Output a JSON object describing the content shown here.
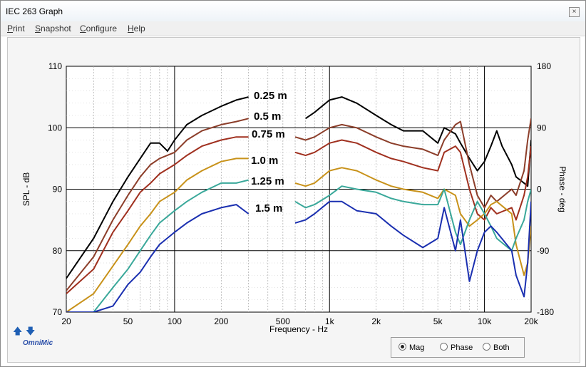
{
  "window": {
    "title": "IEC 263 Graph",
    "close_symbol": "×"
  },
  "menu": [
    "Print",
    "Snapshot",
    "Configure",
    "Help"
  ],
  "branding": {
    "logo_text": "OmniMic",
    "up_arrow": "🡅",
    "down_arrow": "🡇"
  },
  "view_options": {
    "options": [
      "Mag",
      "Phase",
      "Both"
    ],
    "selected": "Mag"
  },
  "chart_data": {
    "type": "line",
    "xlabel": "Frequency - Hz",
    "ylabel": "SPL - dB",
    "y2label": "Phase - deg",
    "x_scale": "log",
    "xlim": [
      20,
      20000
    ],
    "ylim": [
      70,
      110
    ],
    "y2lim": [
      -180,
      180
    ],
    "x_ticks": [
      20,
      50,
      100,
      200,
      500,
      1000,
      2000,
      5000,
      10000,
      20000
    ],
    "x_tick_labels": [
      "20",
      "50",
      "100",
      "200",
      "500",
      "1k",
      "2k",
      "5k",
      "10k",
      "20k"
    ],
    "y_ticks": [
      70,
      80,
      90,
      100,
      110
    ],
    "y2_ticks": [
      -180,
      -90,
      0,
      90,
      180
    ],
    "grid": true,
    "series": [
      {
        "name": "0.25 m",
        "color": "#000000",
        "points": [
          [
            20,
            75.5
          ],
          [
            30,
            82
          ],
          [
            40,
            88
          ],
          [
            50,
            92
          ],
          [
            60,
            95
          ],
          [
            70,
            97.5
          ],
          [
            80,
            97.5
          ],
          [
            90,
            96.2
          ],
          [
            100,
            98
          ],
          [
            120,
            100.5
          ],
          [
            150,
            102
          ],
          [
            200,
            103.5
          ],
          [
            250,
            104.5
          ],
          [
            300,
            105
          ],
          [
            400,
            104
          ],
          [
            500,
            103
          ],
          [
            600,
            102
          ],
          [
            700,
            101.5
          ],
          [
            800,
            102.5
          ],
          [
            1000,
            104.5
          ],
          [
            1200,
            105
          ],
          [
            1500,
            104
          ],
          [
            2000,
            102
          ],
          [
            2500,
            100.5
          ],
          [
            3000,
            99.5
          ],
          [
            4000,
            99.5
          ],
          [
            5000,
            97.5
          ],
          [
            5500,
            100
          ],
          [
            6500,
            99
          ],
          [
            7000,
            97.5
          ],
          [
            8000,
            95
          ],
          [
            9000,
            93
          ],
          [
            10000,
            94.5
          ],
          [
            11000,
            97
          ],
          [
            12000,
            99.5
          ],
          [
            13000,
            97
          ],
          [
            15000,
            94
          ],
          [
            16000,
            92
          ],
          [
            18000,
            91
          ],
          [
            19000,
            90.5
          ],
          [
            20000,
            98
          ]
        ]
      },
      {
        "name": "0.5 m",
        "color": "#8c3e2a",
        "points": [
          [
            20,
            73.5
          ],
          [
            30,
            79
          ],
          [
            40,
            85
          ],
          [
            50,
            89
          ],
          [
            60,
            92
          ],
          [
            70,
            94
          ],
          [
            80,
            95
          ],
          [
            100,
            96
          ],
          [
            120,
            98
          ],
          [
            150,
            99.5
          ],
          [
            200,
            100.5
          ],
          [
            250,
            101
          ],
          [
            300,
            101.5
          ],
          [
            400,
            100.5
          ],
          [
            500,
            99.5
          ],
          [
            600,
            98.5
          ],
          [
            700,
            98
          ],
          [
            800,
            98.5
          ],
          [
            1000,
            100
          ],
          [
            1200,
            100.5
          ],
          [
            1500,
            100
          ],
          [
            2000,
            98.5
          ],
          [
            2500,
            97.5
          ],
          [
            3000,
            97
          ],
          [
            4000,
            96.5
          ],
          [
            5000,
            95.5
          ],
          [
            5500,
            98
          ],
          [
            6500,
            100.5
          ],
          [
            7000,
            101
          ],
          [
            8000,
            94
          ],
          [
            9000,
            89
          ],
          [
            10000,
            87
          ],
          [
            11000,
            89
          ],
          [
            12000,
            88
          ],
          [
            15000,
            90
          ],
          [
            16000,
            89
          ],
          [
            18000,
            93
          ],
          [
            19000,
            98
          ],
          [
            20000,
            101.5
          ]
        ]
      },
      {
        "name": "0.75 m",
        "color": "#a0301f",
        "points": [
          [
            20,
            73
          ],
          [
            30,
            77
          ],
          [
            40,
            83
          ],
          [
            50,
            86.5
          ],
          [
            60,
            89.5
          ],
          [
            70,
            91
          ],
          [
            80,
            92.5
          ],
          [
            100,
            94
          ],
          [
            120,
            95.5
          ],
          [
            150,
            97
          ],
          [
            200,
            98
          ],
          [
            250,
            98.5
          ],
          [
            300,
            98.5
          ],
          [
            400,
            98
          ],
          [
            500,
            97
          ],
          [
            600,
            96
          ],
          [
            700,
            95.5
          ],
          [
            800,
            96
          ],
          [
            1000,
            97.5
          ],
          [
            1200,
            98
          ],
          [
            1500,
            97.5
          ],
          [
            2000,
            96
          ],
          [
            2500,
            95
          ],
          [
            3000,
            94.5
          ],
          [
            4000,
            93.5
          ],
          [
            5000,
            93
          ],
          [
            5500,
            96
          ],
          [
            6500,
            97
          ],
          [
            7000,
            96
          ],
          [
            8000,
            90
          ],
          [
            9000,
            86
          ],
          [
            10000,
            85
          ],
          [
            11000,
            87
          ],
          [
            12000,
            86
          ],
          [
            15000,
            87
          ],
          [
            16000,
            85
          ],
          [
            18000,
            89
          ],
          [
            19000,
            92
          ],
          [
            20000,
            97
          ]
        ]
      },
      {
        "name": "1.0 m",
        "color": "#c8921a",
        "points": [
          [
            20,
            70
          ],
          [
            30,
            73
          ],
          [
            40,
            77.5
          ],
          [
            50,
            81
          ],
          [
            60,
            84
          ],
          [
            70,
            86
          ],
          [
            80,
            88
          ],
          [
            100,
            89.5
          ],
          [
            120,
            91.5
          ],
          [
            150,
            93
          ],
          [
            200,
            94.5
          ],
          [
            250,
            95
          ],
          [
            300,
            95
          ],
          [
            400,
            94
          ],
          [
            500,
            92.5
          ],
          [
            600,
            91
          ],
          [
            700,
            90.5
          ],
          [
            800,
            91
          ],
          [
            1000,
            93
          ],
          [
            1200,
            93.5
          ],
          [
            1500,
            93
          ],
          [
            2000,
            91.5
          ],
          [
            2500,
            90.5
          ],
          [
            3000,
            90
          ],
          [
            4000,
            89.5
          ],
          [
            5000,
            88.5
          ],
          [
            5500,
            90
          ],
          [
            6500,
            89
          ],
          [
            7000,
            86
          ],
          [
            8000,
            84
          ],
          [
            9000,
            85
          ],
          [
            10000,
            86
          ],
          [
            11000,
            87.5
          ],
          [
            12000,
            88
          ],
          [
            15000,
            86
          ],
          [
            16000,
            81
          ],
          [
            18000,
            76
          ],
          [
            19000,
            78
          ],
          [
            20000,
            84
          ]
        ]
      },
      {
        "name": "1.25 m",
        "color": "#3aa89a",
        "points": [
          [
            20,
            70
          ],
          [
            30,
            70
          ],
          [
            40,
            74
          ],
          [
            50,
            77
          ],
          [
            60,
            80
          ],
          [
            70,
            82.5
          ],
          [
            80,
            84.5
          ],
          [
            100,
            86.5
          ],
          [
            120,
            88
          ],
          [
            150,
            89.5
          ],
          [
            200,
            91
          ],
          [
            250,
            91
          ],
          [
            300,
            91.5
          ],
          [
            400,
            90
          ],
          [
            500,
            89
          ],
          [
            600,
            88
          ],
          [
            700,
            87
          ],
          [
            800,
            87.5
          ],
          [
            1000,
            89
          ],
          [
            1200,
            90.5
          ],
          [
            1500,
            90
          ],
          [
            2000,
            89.5
          ],
          [
            2500,
            88.5
          ],
          [
            3000,
            88
          ],
          [
            4000,
            87.5
          ],
          [
            5000,
            87.5
          ],
          [
            5500,
            90
          ],
          [
            6500,
            83
          ],
          [
            7000,
            81
          ],
          [
            8000,
            85
          ],
          [
            9000,
            88
          ],
          [
            10000,
            86
          ],
          [
            11000,
            84
          ],
          [
            12000,
            82
          ],
          [
            15000,
            80
          ],
          [
            16000,
            82
          ],
          [
            18000,
            85
          ],
          [
            19000,
            88
          ],
          [
            20000,
            90
          ]
        ]
      },
      {
        "name": "1.5 m",
        "color": "#1a2fb0",
        "points": [
          [
            20,
            70
          ],
          [
            30,
            70
          ],
          [
            40,
            71
          ],
          [
            50,
            74.5
          ],
          [
            60,
            76.5
          ],
          [
            70,
            79
          ],
          [
            80,
            81
          ],
          [
            100,
            83
          ],
          [
            120,
            84.5
          ],
          [
            150,
            86
          ],
          [
            200,
            87
          ],
          [
            250,
            87.5
          ],
          [
            300,
            86
          ],
          [
            400,
            84.5
          ],
          [
            500,
            84.5
          ],
          [
            600,
            84.5
          ],
          [
            700,
            85
          ],
          [
            800,
            86
          ],
          [
            1000,
            88
          ],
          [
            1200,
            88
          ],
          [
            1500,
            86.5
          ],
          [
            2000,
            86
          ],
          [
            2500,
            84
          ],
          [
            3000,
            82.5
          ],
          [
            4000,
            80.5
          ],
          [
            5000,
            82
          ],
          [
            5500,
            87
          ],
          [
            6500,
            80
          ],
          [
            7000,
            85
          ],
          [
            8000,
            75
          ],
          [
            9000,
            80
          ],
          [
            10000,
            83
          ],
          [
            11000,
            84
          ],
          [
            12000,
            83
          ],
          [
            15000,
            80
          ],
          [
            16000,
            76
          ],
          [
            18000,
            72.5
          ],
          [
            19000,
            78
          ],
          [
            20000,
            88
          ]
        ]
      }
    ]
  }
}
